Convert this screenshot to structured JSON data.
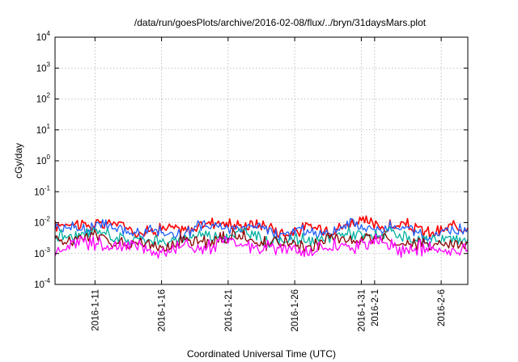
{
  "chart_data": {
    "type": "line",
    "title": "/data/run/goesPlots/archive/2016-02-08/flux/../bryn/31daysMars.plot",
    "xlabel": "Coordinated Universal Time (UTC)",
    "ylabel": "cGy/day",
    "y_scale": "log",
    "ylim": [
      0.0001,
      10000
    ],
    "xlim": [
      "2016-01-08",
      "2016-02-08"
    ],
    "grid": true,
    "legend": "none",
    "y_ticks": [
      {
        "base": "10",
        "exp": "-4"
      },
      {
        "base": "10",
        "exp": "-3"
      },
      {
        "base": "10",
        "exp": "-2"
      },
      {
        "base": "10",
        "exp": "-1"
      },
      {
        "base": "10",
        "exp": "0"
      },
      {
        "base": "10",
        "exp": "1"
      },
      {
        "base": "10",
        "exp": "2"
      },
      {
        "base": "10",
        "exp": "3"
      },
      {
        "base": "10",
        "exp": "4"
      }
    ],
    "x_ticks": [
      "2016-1-11",
      "2016-1-16",
      "2016-1-21",
      "2016-1-26",
      "2016-1-31",
      "2016-2-1",
      "2016-2-6"
    ],
    "x_tick_dates": [
      "2016-01-11",
      "2016-01-16",
      "2016-01-21",
      "2016-01-26",
      "2016-01-31",
      "2016-02-01",
      "2016-02-06"
    ],
    "series": [
      {
        "color": "#ff0000",
        "base": 0.0072,
        "amp": 0.32
      },
      {
        "color": "#1e5fff",
        "base": 0.0058,
        "amp": 0.3
      },
      {
        "color": "#00b0a0",
        "base": 0.0033,
        "amp": 0.3
      },
      {
        "color": "#8b0000",
        "base": 0.0025,
        "amp": 0.33
      },
      {
        "color": "#ff00ff",
        "base": 0.0016,
        "amp": 0.38
      }
    ]
  }
}
